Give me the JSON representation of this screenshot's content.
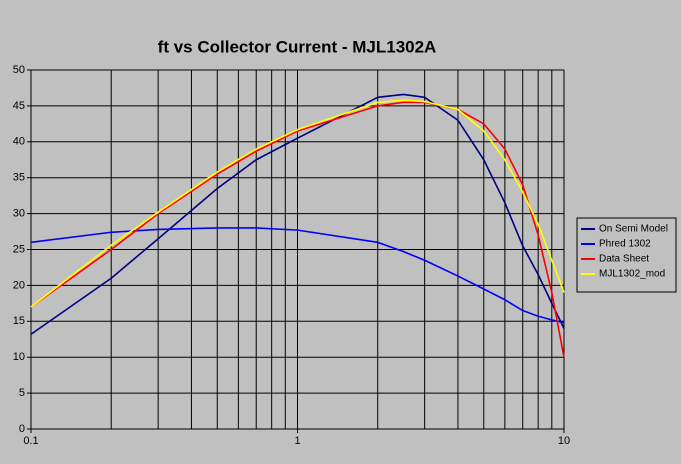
{
  "chart_data": {
    "type": "line",
    "title": "ft vs Collector Current - MJL1302A",
    "x": [
      0.1,
      0.2,
      0.3,
      0.5,
      0.7,
      1,
      2,
      2.5,
      3,
      4,
      5,
      6,
      7,
      8,
      9,
      10
    ],
    "series": [
      {
        "name": "On Semi Model",
        "color": "#000080",
        "values": [
          13.2,
          21,
          26.5,
          33.5,
          37.5,
          40.5,
          46.2,
          46.6,
          46.2,
          43,
          37.5,
          31.5,
          25.5,
          21.5,
          17.5,
          14
        ]
      },
      {
        "name": "Phred 1302",
        "color": "#0000ff",
        "values": [
          26,
          27.4,
          27.8,
          28,
          28,
          27.7,
          26,
          24.7,
          23.5,
          21.3,
          19.5,
          18,
          16.5,
          15.7,
          15.2,
          14.8
        ]
      },
      {
        "name": "Data Sheet",
        "color": "#ff0000",
        "values": [
          17,
          25,
          30,
          35.5,
          38.7,
          41.5,
          45,
          45.5,
          45.5,
          44.5,
          42.5,
          39,
          34,
          27,
          19,
          10
        ]
      },
      {
        "name": "MJL1302_mod",
        "color": "#ffff00",
        "values": [
          17,
          25.6,
          30.2,
          35.8,
          39,
          41.7,
          45.5,
          45.8,
          45.6,
          44.5,
          41.5,
          37.5,
          33,
          28.5,
          23.5,
          19
        ]
      }
    ],
    "xlog": true,
    "xlim": [
      0.1,
      10
    ],
    "xticks": [
      0.1,
      1,
      10
    ],
    "xgrid_minor": [
      0.2,
      0.3,
      0.4,
      0.5,
      0.6,
      0.7,
      0.8,
      0.9,
      2,
      3,
      4,
      5,
      6,
      7,
      8,
      9
    ],
    "ylim": [
      0,
      50
    ],
    "yticks": [
      0,
      5,
      10,
      15,
      20,
      25,
      30,
      35,
      40,
      45,
      50
    ],
    "grid": true,
    "legend": "right"
  }
}
